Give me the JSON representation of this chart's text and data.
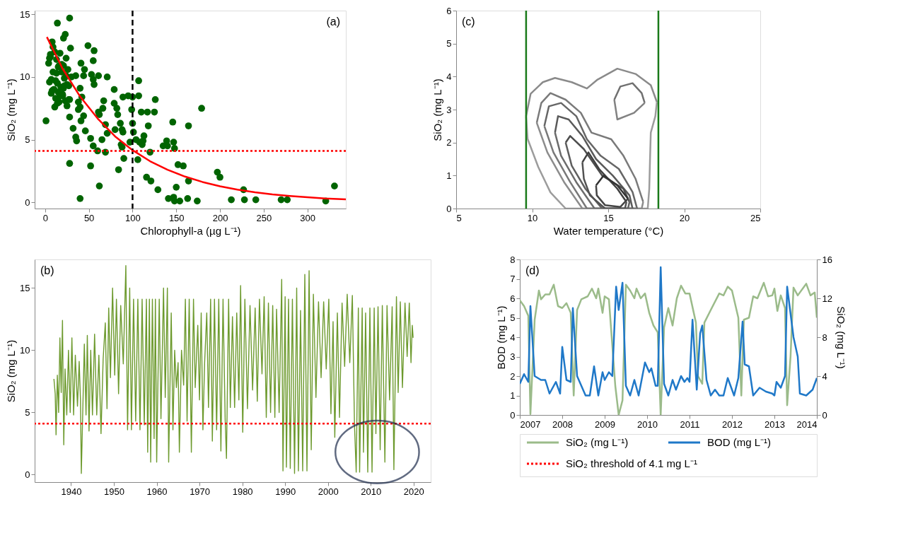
{
  "chart_data": [
    {
      "type": "scatter",
      "xlabel": "Chlorophyll-a (µg L⁻¹)",
      "ylabel": "SiO₂ (mg L⁻¹)",
      "annotations": [
        "(a)"
      ],
      "xlim": [
        -12,
        344
      ],
      "ylim": [
        -0.5,
        15.3
      ],
      "xticks": [
        0,
        50,
        100,
        150,
        200,
        250,
        300
      ],
      "yticks": [
        0,
        5,
        10,
        15
      ],
      "grid": false,
      "series": [
        {
          "color": "#006400",
          "marker": "circle",
          "x": [
            1,
            14,
            28,
            21,
            23,
            49,
            56,
            55,
            41,
            45,
            44,
            53,
            55,
            56,
            61,
            71,
            79,
            40,
            35,
            42,
            38,
            40,
            38,
            44,
            41,
            32,
            46,
            35,
            36,
            28,
            28,
            52,
            55,
            60,
            62,
            61,
            65,
            66,
            67,
            69,
            69,
            71,
            79,
            80,
            82,
            83,
            86,
            88,
            87,
            89,
            88,
            90,
            84,
            52,
            62,
            40,
            89,
            95,
            99,
            100,
            107,
            107,
            100,
            101,
            97,
            104,
            108,
            111,
            113,
            112,
            110,
            117,
            125,
            126,
            118,
            120,
            106,
            116,
            121,
            129,
            135,
            139,
            140,
            147,
            148,
            146,
            164,
            152,
            158,
            164,
            150,
            141,
            147,
            148,
            154,
            163,
            174,
            179,
            197,
            200,
            213,
            227,
            228,
            241,
            270,
            277,
            321,
            331,
            4,
            5,
            6,
            7,
            8,
            9,
            10,
            11,
            12,
            13,
            14,
            15,
            16,
            17,
            18,
            19,
            20,
            21,
            22,
            23,
            24,
            25,
            26,
            27,
            28,
            30,
            5,
            7,
            9,
            11,
            13,
            15,
            17,
            19,
            21,
            25,
            27,
            29,
            8,
            12,
            16,
            20,
            24,
            6,
            10,
            14,
            22
          ],
          "values": [
            6.5,
            14.3,
            14.7,
            13.1,
            13.4,
            12.5,
            12.1,
            11.3,
            11.1,
            10.6,
            10.1,
            10.2,
            9.8,
            9.4,
            10.1,
            10.0,
            9.0,
            9.1,
            10.1,
            8.4,
            8.0,
            7.6,
            7.4,
            6.9,
            6.5,
            5.9,
            5.7,
            5.2,
            4.9,
            6.8,
            3.1,
            5.1,
            4.5,
            4.1,
            7.0,
            7.2,
            5.0,
            7.5,
            8.1,
            6.2,
            4.0,
            5.5,
            7.9,
            5.8,
            7.5,
            7.0,
            6.3,
            5.8,
            4.6,
            5.6,
            4.4,
            3.5,
            2.6,
            2.9,
            1.3,
            0.3,
            8.4,
            8.5,
            7.4,
            8.4,
            9.7,
            8.5,
            6.3,
            5.6,
            4.8,
            5.0,
            4.8,
            4.6,
            5.3,
            4.9,
            7.2,
            7.2,
            7.2,
            8.2,
            6.1,
            4.0,
            3.4,
            2.0,
            1.7,
            1.0,
            4.5,
            4.9,
            4.5,
            4.8,
            4.3,
            6.4,
            6.1,
            3.0,
            2.9,
            1.7,
            1.2,
            0.3,
            0.4,
            0.1,
            0.1,
            0.3,
            0.1,
            7.5,
            2.4,
            2.0,
            0.2,
            1.0,
            0.2,
            0.2,
            0.2,
            0.2,
            0.1,
            1.3,
            11.1,
            9.6,
            11.8,
            8.7,
            12.8,
            10.4,
            9.0,
            12.0,
            8.3,
            11.4,
            9.5,
            10.8,
            8.0,
            11.9,
            9.2,
            10.4,
            8.6,
            10.9,
            9.9,
            8.1,
            11.5,
            9.4,
            10.6,
            8.2,
            8.2,
            10.0,
            11.5,
            9.8,
            12.4,
            7.6,
            10.3,
            8.8,
            8.5,
            11.0,
            9.1,
            7.7,
            9.3,
            12.3,
            8.9,
            9.7,
            10.9,
            8.5,
            10.1,
            11.6,
            9.0,
            7.9,
            9.3
          ]
        },
        {
          "type": "line",
          "color": "#ff0000",
          "x": [
            2,
            20,
            40,
            60,
            80,
            100,
            120,
            140,
            160,
            180,
            200,
            220,
            240,
            260,
            280,
            300,
            320,
            344
          ],
          "values": [
            13.19,
            10.66,
            8.44,
            6.69,
            5.26,
            4.16,
            3.28,
            2.6,
            2.05,
            1.62,
            1.28,
            1.01,
            0.8,
            0.63,
            0.5,
            0.4,
            0.31,
            0.24
          ]
        }
      ],
      "ref_lines": [
        {
          "axis": "x",
          "value": 100,
          "color": "#000000",
          "line_style": "dashed"
        },
        {
          "axis": "y",
          "value": 4.1,
          "color": "#ff0000",
          "line_style": "dotted"
        }
      ]
    },
    {
      "type": "line",
      "xlabel": "Water temperature (°C)",
      "ylabel": "SiO₂ (mg L⁻¹)",
      "annotations": [
        "(c)"
      ],
      "xlim": [
        5,
        25
      ],
      "ylim": [
        0,
        6
      ],
      "xticks": [
        5,
        10,
        15,
        20,
        25
      ],
      "yticks": [
        0,
        1,
        2,
        3,
        4,
        5,
        6
      ],
      "grid": false,
      "series": [
        {
          "color": "#8a8a8a",
          "x": [
            9.6,
            9.9,
            10.7,
            11.5,
            12.6,
            13.6,
            14.3,
            15.6,
            16.8,
            17.8,
            18.2
          ],
          "values": [
            2.8,
            3.48,
            3.83,
            3.96,
            3.83,
            3.64,
            3.91,
            4.24,
            4.08,
            3.74,
            3.23
          ]
        },
        {
          "color": "#9c9c9c",
          "x": [
            9.6,
            9.7,
            10.4,
            11.2,
            12.2,
            17.6,
            17.7,
            17.75,
            17.8,
            18.1,
            18.2
          ],
          "values": [
            2.8,
            2.11,
            1.26,
            0.49,
            0,
            0,
            0.6,
            1.5,
            2.3,
            2.8,
            3.23
          ]
        },
        {
          "color": "#7a7a7a",
          "x": [
            10.3,
            10.6,
            11.2,
            12.2,
            13.2,
            13.9,
            15.2,
            16.0,
            16.8,
            17.3
          ],
          "values": [
            2.6,
            3.2,
            3.5,
            3.3,
            2.9,
            2.3,
            2.1,
            1.6,
            0.9,
            0.2
          ]
        },
        {
          "color": "#8c8c8c",
          "x": [
            10.3,
            11.0,
            12.1,
            13.3,
            17.2,
            17.3
          ],
          "values": [
            2.6,
            1.7,
            0.8,
            0,
            0,
            0.2
          ]
        },
        {
          "color": "#707070",
          "x": [
            15.4,
            15.8,
            16.6,
            17.2,
            17.4
          ],
          "values": [
            3.3,
            3.7,
            3.8,
            3.5,
            3.2
          ]
        },
        {
          "color": "#828282",
          "x": [
            15.4,
            15.6,
            16.7,
            17.4
          ],
          "values": [
            3.3,
            2.7,
            2.9,
            3.2
          ]
        },
        {
          "color": "#666666",
          "x": [
            10.8,
            11.1,
            11.9,
            12.9,
            13.6,
            14.5,
            15.7,
            16.6,
            16.9
          ],
          "values": [
            2.5,
            3.1,
            3.2,
            2.8,
            2.1,
            1.6,
            1.2,
            0.5,
            0
          ]
        },
        {
          "color": "#787878",
          "x": [
            10.8,
            11.4,
            12.5,
            13.6,
            16.9
          ],
          "values": [
            2.5,
            1.7,
            0.8,
            0,
            0
          ]
        },
        {
          "color": "#5a5a5a",
          "x": [
            11.5,
            11.7,
            12.4,
            13.3,
            14.2,
            15.3,
            16.4,
            16.6
          ],
          "values": [
            2.3,
            2.8,
            2.7,
            2.2,
            1.5,
            1.0,
            0.4,
            0
          ]
        },
        {
          "color": "#6c6c6c",
          "x": [
            11.5,
            11.9,
            12.9,
            14.1,
            16.6
          ],
          "values": [
            2.3,
            1.6,
            0.8,
            0,
            0
          ]
        },
        {
          "color": "#4d4d4d",
          "x": [
            12.2,
            12.5,
            13.4,
            14.6,
            16.0,
            16.4
          ],
          "values": [
            2.0,
            2.2,
            1.8,
            1.0,
            0.6,
            0.2
          ]
        },
        {
          "color": "#5f5f5f",
          "x": [
            12.2,
            12.6,
            13.5,
            14.6,
            16.3,
            16.4
          ],
          "values": [
            2.0,
            1.3,
            0.6,
            0,
            0,
            0.2
          ]
        },
        {
          "color": "#404040",
          "x": [
            13.3,
            13.7,
            14.4,
            15.6,
            16.2
          ],
          "values": [
            1.4,
            1.7,
            1.2,
            0.6,
            0.2
          ]
        },
        {
          "color": "#525252",
          "x": [
            13.3,
            13.4,
            13.8,
            14.8,
            16.1,
            16.2
          ],
          "values": [
            1.4,
            0.9,
            0.4,
            0,
            0,
            0.2
          ]
        },
        {
          "color": "#333333",
          "x": [
            14.2,
            14.7,
            15.6,
            16.3
          ],
          "values": [
            0.7,
            1.0,
            0.7,
            0.3
          ]
        },
        {
          "color": "#454545",
          "x": [
            14.2,
            14.25,
            14.8,
            15.8,
            16.3
          ],
          "values": [
            0.7,
            0.4,
            0.1,
            0.05,
            0.3
          ]
        }
      ],
      "ref_lines": [
        {
          "axis": "x",
          "value": 9.6,
          "color": "#1a7a1a",
          "line_style": "solid"
        },
        {
          "axis": "x",
          "value": 18.3,
          "color": "#1a7a1a",
          "line_style": "solid"
        }
      ]
    },
    {
      "type": "line",
      "ylabel": "SiO₂ (mg L⁻¹)",
      "annotations": [
        "(b)"
      ],
      "xlim": [
        1931.5,
        2024
      ],
      "ylim": [
        -0.6,
        17.3
      ],
      "xticks": [
        1940,
        1950,
        1960,
        1970,
        1980,
        1990,
        2000,
        2010,
        2020
      ],
      "yticks": [
        0,
        5,
        10,
        15
      ],
      "grid": false,
      "legend": "bottom right",
      "series": [
        {
          "color": "#6d9a2e",
          "x": [
            1936.0,
            1936.3,
            1936.5,
            1936.8,
            1937.1,
            1937.4,
            1937.7,
            1938.0,
            1938.3,
            1938.6,
            1939.0,
            1939.4,
            1939.8,
            1940.2,
            1940.6,
            1941.0,
            1941.5,
            1941.9,
            1942.2,
            1942.4,
            1942.8,
            1943.1,
            1943.5,
            1943.8,
            1944.2,
            1944.6,
            1945.0,
            1945.5,
            1946.0,
            1946.5,
            1947.0,
            1947.5,
            1948.0,
            1948.4,
            1948.8,
            1949.2,
            1949.7,
            1950.2,
            1950.6,
            1951.1,
            1951.6,
            1952.2,
            1952.8,
            1953.2,
            1953.7,
            1954.1,
            1954.6,
            1955.1,
            1955.6,
            1956.1,
            1956.6,
            1957.1,
            1957.6,
            1957.9,
            1958.3,
            1958.6,
            1959.0,
            1959.4,
            1959.7,
            1960.0,
            1960.6,
            1961.0,
            1961.6,
            1962.0,
            1962.5,
            1962.8,
            1963.4,
            1963.8,
            1964.2,
            1964.6,
            1965.0,
            1965.3,
            1965.8,
            1966.3,
            1966.7,
            1967.1,
            1967.6,
            1968.1,
            1968.6,
            1969.0,
            1969.6,
            1970.0,
            1970.4,
            1970.8,
            1971.2,
            1971.7,
            1972.1,
            1972.6,
            1973.0,
            1973.5,
            1974.0,
            1974.5,
            1975.0,
            1975.5,
            1976.0,
            1976.3,
            1976.8,
            1977.2,
            1977.7,
            1978.2,
            1978.7,
            1979.2,
            1979.6,
            1980.1,
            1980.6,
            1981.2,
            1981.8,
            1982.4,
            1983.0,
            1983.5,
            1984.0,
            1984.6,
            1985.1,
            1985.6,
            1986.1,
            1986.6,
            1987.1,
            1987.6,
            1988.0,
            1988.6,
            1989.2,
            1989.5,
            1990.0,
            1990.3,
            1990.8,
            1991.2,
            1991.7,
            1992.2,
            1992.7,
            1993.1,
            1993.6,
            1994.1,
            1994.6,
            1995.1,
            1995.6,
            1996.1,
            1996.6,
            1997.2,
            1997.8,
            1998.4,
            1999.0,
            1999.6,
            2000.2,
            2000.7,
            2001.2,
            2001.6,
            2002.2,
            2002.7,
            2003.3,
            2003.9,
            2004.5,
            2005.1,
            2005.7,
            2006.2,
            2006.6,
            2007.1,
            2007.4,
            2008.0,
            2008.3,
            2008.8,
            2009.3,
            2009.8,
            2010.3,
            2010.8,
            2011.2,
            2011.7,
            2012.2,
            2012.7,
            2013.3,
            2013.8,
            2014.4,
            2015.0,
            2015.4,
            2016.0,
            2016.4,
            2016.9,
            2017.4,
            2018.0,
            2018.5,
            2019.0,
            2019.4,
            2019.7,
            2019.9
          ],
          "values": [
            7.7,
            6.5,
            3.2,
            8.0,
            5.0,
            11.0,
            6.6,
            12.4,
            2.4,
            8.5,
            4.8,
            10.0,
            5.0,
            11.0,
            4.8,
            9.6,
            5.5,
            9.1,
            6.0,
            0.1,
            6.0,
            10.5,
            4.8,
            11.2,
            3.5,
            10.0,
            4.8,
            11.3,
            4.8,
            9.6,
            3.3,
            9.3,
            12.2,
            5.3,
            13.4,
            7.8,
            15.0,
            8.0,
            14.1,
            6.5,
            13.6,
            8.9,
            16.8,
            3.6,
            15.0,
            3.6,
            14.1,
            4.3,
            14.1,
            3.6,
            14.1,
            4.0,
            14.1,
            1.8,
            14.1,
            1.0,
            14.1,
            2.9,
            14.1,
            1.0,
            14.1,
            4.5,
            15.0,
            6.2,
            15.0,
            1.0,
            13.0,
            3.6,
            10.0,
            7.0,
            9.0,
            1.8,
            10.0,
            7.2,
            14.1,
            4.3,
            14.1,
            1.8,
            14.1,
            7.0,
            12.0,
            6.0,
            13.0,
            3.6,
            9.0,
            13.0,
            5.4,
            14.1,
            2.7,
            14.1,
            3.6,
            14.1,
            1.9,
            14.1,
            4.4,
            1.3,
            14.1,
            5.4,
            12.7,
            5.4,
            13.0,
            6.0,
            15.2,
            3.4,
            14.1,
            5.3,
            13.6,
            6.8,
            13.4,
            5.9,
            14.1,
            8.1,
            14.3,
            4.6,
            13.8,
            5.0,
            13.6,
            4.6,
            13.3,
            5.0,
            15.7,
            0.3,
            14.3,
            0.6,
            14.1,
            0.5,
            14.1,
            0.1,
            15.0,
            0.3,
            13.2,
            0.3,
            16.1,
            0.3,
            16.4,
            2.0,
            14.5,
            6.2,
            13.9,
            7.8,
            13.9,
            8.5,
            14.1,
            4.9,
            12.3,
            3.0,
            13.0,
            4.6,
            13.8,
            8.7,
            14.5,
            9.0,
            14.4,
            4.0,
            0.2,
            13.4,
            0.2,
            13.4,
            1.8,
            13.0,
            0.2,
            13.4,
            0.2,
            13.4,
            3.3,
            13.5,
            2.0,
            13.6,
            1.0,
            13.6,
            6.0,
            13.5,
            0.4,
            14.3,
            6.6,
            13.9,
            7.0,
            13.8,
            9.5,
            13.8,
            9.0,
            12.0,
            11.0
          ]
        }
      ],
      "ref_lines": [
        {
          "axis": "y",
          "value": 4.1,
          "color": "#ff0000",
          "line_style": "dotted",
          "label": "SiO₂ threshold of 4.1 mg L⁻¹"
        }
      ]
    },
    {
      "type": "line",
      "ylabel": "BOD (mg L⁻¹)",
      "y2label": "SiO₂ (mg L⁻¹)",
      "annotations": [
        "(d)"
      ],
      "xlim": [
        2007,
        2014
      ],
      "ylim": [
        0,
        8
      ],
      "y2lim": [
        0,
        16
      ],
      "xticks": [
        2007,
        2008,
        2009,
        2010,
        2011,
        2012,
        2013,
        2014
      ],
      "yticks": [
        0,
        1,
        2,
        3,
        4,
        5,
        6,
        7,
        8
      ],
      "y2ticks": [
        0,
        4,
        8,
        12,
        16
      ],
      "grid": false,
      "legend": "bottom",
      "series": [
        {
          "name": "SiO₂ (mg L⁻¹)",
          "color": "#9bbb8a",
          "axis": "y2",
          "x": [
            2007.0,
            2007.1,
            2007.2,
            2007.25,
            2007.35,
            2007.45,
            2007.5,
            2007.6,
            2007.7,
            2007.8,
            2007.9,
            2008.0,
            2008.1,
            2008.2,
            2008.27,
            2008.35,
            2008.45,
            2008.6,
            2008.7,
            2008.8,
            2008.85,
            2008.95,
            2009.0,
            2009.1,
            2009.25,
            2009.33,
            2009.42,
            2009.5,
            2009.6,
            2009.7,
            2009.75,
            2009.85,
            2009.95,
            2010.05,
            2010.15,
            2010.25,
            2010.32,
            2010.4,
            2010.5,
            2010.6,
            2010.7,
            2010.8,
            2010.9,
            2011.0,
            2011.15,
            2011.2,
            2011.3,
            2011.35,
            2011.5,
            2011.7,
            2011.8,
            2011.9,
            2012.0,
            2012.15,
            2012.22,
            2012.28,
            2012.4,
            2012.5,
            2012.6,
            2012.75,
            2012.85,
            2012.95,
            2013.0,
            2013.07,
            2013.15,
            2013.25,
            2013.3,
            2013.38,
            2013.45,
            2013.55,
            2013.7,
            2013.75,
            2013.85,
            2013.95,
            2014.0
          ],
          "values": [
            11.8,
            11.2,
            10.2,
            0.1,
            9.8,
            12.8,
            11.9,
            12.4,
            12.4,
            13.4,
            11.2,
            11.0,
            11.5,
            10.5,
            2.0,
            10.8,
            11.9,
            12.2,
            13.0,
            12.0,
            13.0,
            10.5,
            12.2,
            11.9,
            3.0,
            0.0,
            1.5,
            13.4,
            12.8,
            12.0,
            13.0,
            12.0,
            12.5,
            10.5,
            9.2,
            8.5,
            0.0,
            9.0,
            11.0,
            9.2,
            12.0,
            13.3,
            12.5,
            12.5,
            9.5,
            4.0,
            3.2,
            9.5,
            10.8,
            12.5,
            12.3,
            13.2,
            12.8,
            10.0,
            2.0,
            9.8,
            10.0,
            12.2,
            12.0,
            13.6,
            12.2,
            12.3,
            13.0,
            10.7,
            12.3,
            11.0,
            1.0,
            6.0,
            13.1,
            12.3,
            13.2,
            13.5,
            12.3,
            12.6,
            10.0
          ]
        },
        {
          "name": "BOD (mg L⁻¹)",
          "color": "#1f78c8",
          "x": [
            2007.0,
            2007.1,
            2007.2,
            2007.25,
            2007.35,
            2007.5,
            2007.6,
            2007.7,
            2007.85,
            2007.95,
            2008.0,
            2008.1,
            2008.2,
            2008.25,
            2008.35,
            2008.45,
            2008.55,
            2008.65,
            2008.75,
            2008.85,
            2008.95,
            2009.0,
            2009.1,
            2009.18,
            2009.27,
            2009.33,
            2009.42,
            2009.5,
            2009.6,
            2009.7,
            2009.8,
            2009.95,
            2010.05,
            2010.1,
            2010.2,
            2010.25,
            2010.32,
            2010.4,
            2010.5,
            2010.6,
            2010.68,
            2010.8,
            2010.88,
            2010.95,
            2011.0,
            2011.07,
            2011.17,
            2011.25,
            2011.3,
            2011.4,
            2011.5,
            2011.6,
            2011.7,
            2011.8,
            2011.9,
            2012.05,
            2012.15,
            2012.25,
            2012.3,
            2012.4,
            2012.5,
            2012.65,
            2012.8,
            2012.95,
            2013.0,
            2013.05,
            2013.15,
            2013.25,
            2013.3,
            2013.45,
            2013.55,
            2013.6,
            2013.75,
            2013.9,
            2014.0
          ],
          "values": [
            1.6,
            2.1,
            1.7,
            5.6,
            2.0,
            1.8,
            1.8,
            1.1,
            1.7,
            1.1,
            3.5,
            1.8,
            1.7,
            5.5,
            2.0,
            1.5,
            1.0,
            1.0,
            2.5,
            1.0,
            2.2,
            1.8,
            2.2,
            2.0,
            6.6,
            5.4,
            6.8,
            1.5,
            1.0,
            1.8,
            1.0,
            2.7,
            2.2,
            2.4,
            1.5,
            1.5,
            7.6,
            1.6,
            1.0,
            1.8,
            1.3,
            2.0,
            1.7,
            1.9,
            1.7,
            4.9,
            1.3,
            4.2,
            4.6,
            1.8,
            1.0,
            1.3,
            1.0,
            1.0,
            1.9,
            1.0,
            1.9,
            4.8,
            2.6,
            2.5,
            1.0,
            1.4,
            1.2,
            1.1,
            1.0,
            1.7,
            1.4,
            2.0,
            6.6,
            4.0,
            3.0,
            1.1,
            1.0,
            1.3,
            1.9
          ]
        }
      ]
    }
  ]
}
